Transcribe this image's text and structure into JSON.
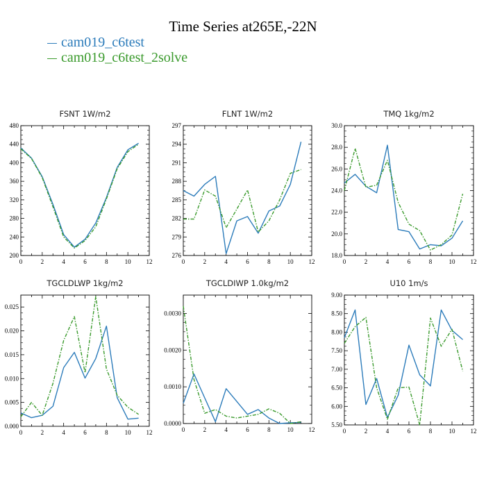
{
  "title": "Time Series at265E,-22N",
  "legend": [
    {
      "label": "cam019_c6test",
      "color": "#2b7bba"
    },
    {
      "label": "cam019_c6test_2solve",
      "color": "#3a9a2c"
    }
  ],
  "chart_data": [
    {
      "type": "line",
      "title": "FSNT   1W/m2",
      "x": [
        0,
        1,
        2,
        3,
        4,
        5,
        6,
        7,
        8,
        9,
        10,
        11
      ],
      "xlim": [
        0,
        12
      ],
      "xticks": [
        0,
        2,
        4,
        6,
        8,
        10,
        12
      ],
      "ylim": [
        200,
        480
      ],
      "yticks": [
        "200",
        "240",
        "280",
        "320",
        "360",
        "400",
        "440",
        "480"
      ],
      "ytick_values": [
        200,
        240,
        280,
        320,
        360,
        400,
        440,
        480
      ],
      "series": [
        {
          "name": "cam019_c6test",
          "values": [
            432,
            410,
            370,
            310,
            245,
            218,
            235,
            270,
            325,
            390,
            428,
            442
          ]
        },
        {
          "name": "cam019_c6test_2solve",
          "values": [
            430,
            409,
            368,
            305,
            240,
            216,
            232,
            262,
            322,
            387,
            424,
            440
          ]
        }
      ]
    },
    {
      "type": "line",
      "title": "FLNT   1W/m2",
      "x": [
        0,
        1,
        2,
        3,
        4,
        5,
        6,
        7,
        8,
        9,
        10,
        11
      ],
      "xlim": [
        0,
        12
      ],
      "xticks": [
        0,
        2,
        4,
        6,
        8,
        10,
        12
      ],
      "ylim": [
        276,
        297
      ],
      "yticks": [
        "276",
        "279",
        "282",
        "285",
        "288",
        "291",
        "294",
        "297"
      ],
      "ytick_values": [
        276,
        279,
        282,
        285,
        288,
        291,
        294,
        297
      ],
      "series": [
        {
          "name": "cam019_c6test",
          "values": [
            286.5,
            285.6,
            287.5,
            288.8,
            276.3,
            281.6,
            282.3,
            279.6,
            283.2,
            284.0,
            287.5,
            294.4
          ]
        },
        {
          "name": "cam019_c6test_2solve",
          "values": [
            281.9,
            281.9,
            286.6,
            285.6,
            280.5,
            283.5,
            286.6,
            279.8,
            281.6,
            285.0,
            289.3,
            289.9
          ]
        }
      ]
    },
    {
      "type": "line",
      "title": "TMQ   1kg/m2",
      "x": [
        0,
        1,
        2,
        3,
        4,
        5,
        6,
        7,
        8,
        9,
        10,
        11
      ],
      "xlim": [
        0,
        12
      ],
      "xticks": [
        0,
        2,
        4,
        6,
        8,
        10,
        12
      ],
      "ylim": [
        18.0,
        30.0
      ],
      "yticks": [
        "18.0",
        "20.0",
        "22.0",
        "24.0",
        "26.0",
        "28.0",
        "30.0"
      ],
      "ytick_values": [
        18,
        20,
        22,
        24,
        26,
        28,
        30
      ],
      "series": [
        {
          "name": "cam019_c6test",
          "values": [
            24.7,
            25.5,
            24.4,
            23.8,
            28.2,
            20.4,
            20.2,
            18.6,
            19.0,
            18.9,
            19.6,
            21.2
          ]
        },
        {
          "name": "cam019_c6test_2solve",
          "values": [
            24.0,
            27.9,
            24.3,
            24.5,
            26.8,
            22.9,
            20.9,
            20.3,
            18.5,
            19.0,
            19.9,
            23.7
          ]
        }
      ]
    },
    {
      "type": "line",
      "title": "TGCLDLWP   1kg/m2",
      "x": [
        0,
        1,
        2,
        3,
        4,
        5,
        6,
        7,
        8,
        9,
        10,
        11
      ],
      "xlim": [
        0,
        12
      ],
      "xticks": [
        0,
        2,
        4,
        6,
        8,
        10,
        12
      ],
      "ylim": [
        0.0,
        0.0275
      ],
      "yticks": [
        "0.000",
        "0.005",
        "0.010",
        "0.015",
        "0.020",
        "0.025"
      ],
      "ytick_values": [
        0,
        0.005,
        0.01,
        0.015,
        0.02,
        0.025
      ],
      "series": [
        {
          "name": "cam019_c6test",
          "values": [
            0.0028,
            0.0018,
            0.0023,
            0.0042,
            0.0123,
            0.0155,
            0.0101,
            0.0142,
            0.021,
            0.006,
            0.0015,
            0.0017
          ]
        },
        {
          "name": "cam019_c6test_2solve",
          "values": [
            0.002,
            0.005,
            0.0023,
            0.009,
            0.018,
            0.023,
            0.0112,
            0.0272,
            0.012,
            0.0065,
            0.004,
            0.0025
          ]
        }
      ]
    },
    {
      "type": "line",
      "title": "TGCLDIWP   1.0kg/m2",
      "x": [
        0,
        1,
        2,
        3,
        4,
        5,
        6,
        7,
        8,
        9,
        10,
        11
      ],
      "xlim": [
        0,
        12
      ],
      "xticks": [
        0,
        2,
        4,
        6,
        8,
        10,
        12
      ],
      "ylim": [
        0.0,
        0.0035
      ],
      "yticks": [
        "0.0000",
        "0.0010",
        "0.0020",
        "0.0030"
      ],
      "ytick_values": [
        0,
        0.001,
        0.002,
        0.003
      ],
      "series": [
        {
          "name": "cam019_c6test",
          "values": [
            0.00055,
            0.00135,
            0.0007,
            5e-05,
            0.00095,
            0.0006,
            0.00025,
            0.00038,
            0.00015,
            0.0,
            2e-05,
            3e-05
          ]
        },
        {
          "name": "cam019_c6test_2solve",
          "values": [
            0.0032,
            0.0012,
            0.00028,
            0.00038,
            0.0002,
            0.00015,
            0.0002,
            0.00025,
            0.0004,
            0.00028,
            0.0,
            5e-05
          ]
        }
      ]
    },
    {
      "type": "line",
      "title": "U10   1m/s",
      "x": [
        0,
        1,
        2,
        3,
        4,
        5,
        6,
        7,
        8,
        9,
        10,
        11
      ],
      "xlim": [
        0,
        12
      ],
      "xticks": [
        0,
        2,
        4,
        6,
        8,
        10,
        12
      ],
      "ylim": [
        5.5,
        9.0
      ],
      "yticks": [
        "5.50",
        "6.00",
        "6.50",
        "7.00",
        "7.50",
        "8.00",
        "8.50",
        "9.00"
      ],
      "ytick_values": [
        5.5,
        6.0,
        6.5,
        7.0,
        7.5,
        8.0,
        8.5,
        9.0
      ],
      "series": [
        {
          "name": "cam019_c6test",
          "values": [
            7.85,
            8.6,
            6.05,
            6.75,
            5.7,
            6.3,
            7.65,
            6.85,
            6.55,
            8.6,
            8.05,
            7.8
          ]
        },
        {
          "name": "cam019_c6test_2solve",
          "values": [
            7.7,
            8.15,
            8.4,
            6.5,
            5.65,
            6.5,
            6.52,
            5.5,
            8.38,
            7.62,
            8.08,
            6.95
          ]
        }
      ]
    }
  ]
}
